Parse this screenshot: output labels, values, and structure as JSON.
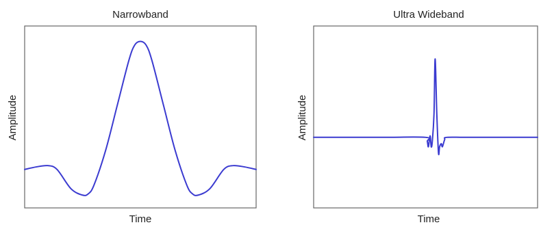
{
  "chart_data": [
    {
      "type": "line",
      "title": "Narrowband",
      "xlabel": "Time",
      "ylabel": "Amplitude",
      "xlim": [
        -1,
        1
      ],
      "ylim": [
        -0.3,
        1.12
      ],
      "grid": false,
      "color": "#3b3bd0",
      "series": [
        {
          "x": [
            -1.0,
            -0.9,
            -0.8,
            -0.72,
            -0.6,
            -0.5,
            -0.45,
            -0.4,
            -0.3,
            -0.2,
            -0.1,
            -0.05,
            0.0,
            0.05,
            0.1,
            0.2,
            0.3,
            0.4,
            0.45,
            0.5,
            0.6,
            0.72,
            0.8,
            0.9,
            1.0
          ],
          "y": [
            0.0,
            0.02,
            0.03,
            0.0,
            -0.15,
            -0.2,
            -0.19,
            -0.12,
            0.15,
            0.5,
            0.85,
            0.97,
            1.0,
            0.97,
            0.85,
            0.5,
            0.15,
            -0.12,
            -0.19,
            -0.2,
            -0.15,
            0.0,
            0.03,
            0.02,
            0.0
          ]
        }
      ]
    },
    {
      "type": "line",
      "title": "Ultra Wideband",
      "xlabel": "Time",
      "ylabel": "Amplitude",
      "xlim": [
        -1,
        1
      ],
      "ylim": [
        -0.9,
        1.42
      ],
      "grid": false,
      "color": "#3b3bd0",
      "series": [
        {
          "x": [
            -1.0,
            -0.4,
            0.0,
            0.015,
            0.025,
            0.04,
            0.05,
            0.06,
            0.075,
            0.085,
            0.1,
            0.115,
            0.125,
            0.14,
            0.15,
            0.17,
            0.19,
            0.4,
            1.0
          ],
          "y": [
            0.0,
            0.0,
            0.0,
            -0.05,
            -0.12,
            0.02,
            -0.12,
            -0.05,
            0.3,
            1.0,
            0.3,
            -0.2,
            -0.12,
            -0.08,
            -0.12,
            -0.03,
            0.0,
            0.0,
            0.0
          ]
        }
      ]
    }
  ]
}
